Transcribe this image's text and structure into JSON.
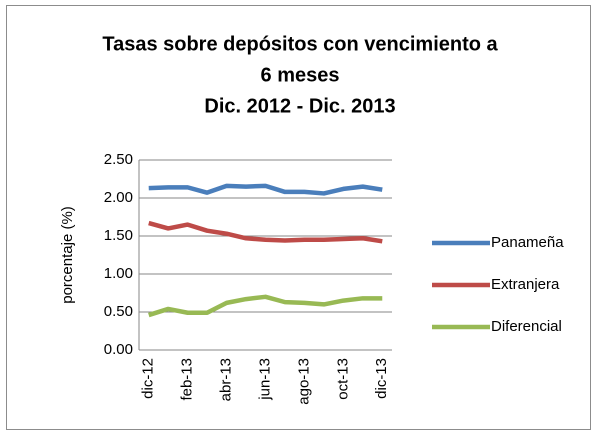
{
  "chart_data": {
    "type": "line",
    "title": [
      "Tasas sobre depósitos con vencimiento a",
      "6 meses",
      "Dic. 2012 - Dic. 2013"
    ],
    "y_label": "porcentaje (%)",
    "categories": [
      "dic-12",
      null,
      "feb-13",
      null,
      "abr-13",
      null,
      "jun-13",
      null,
      "ago-13",
      null,
      "oct-13",
      null,
      "dic-13"
    ],
    "series": [
      {
        "name": "Panameña",
        "color": "#4a7ebb",
        "values": [
          2.13,
          2.14,
          2.14,
          2.07,
          2.16,
          2.15,
          2.16,
          2.08,
          2.08,
          2.06,
          2.12,
          2.15,
          2.11
        ]
      },
      {
        "name": "Extranjera",
        "color": "#be4b48",
        "values": [
          1.67,
          1.6,
          1.65,
          1.57,
          1.53,
          1.47,
          1.45,
          1.44,
          1.45,
          1.45,
          1.46,
          1.47,
          1.43
        ]
      },
      {
        "name": "Diferencial",
        "color": "#98b954",
        "values": [
          0.46,
          0.54,
          0.49,
          0.49,
          0.62,
          0.67,
          0.7,
          0.63,
          0.62,
          0.6,
          0.65,
          0.68,
          0.68
        ]
      }
    ],
    "ylim": [
      0,
      2.5
    ],
    "yticks": [
      {
        "value": 0,
        "label": "0.00"
      },
      {
        "value": 0.5,
        "label": "0.50"
      },
      {
        "value": 1,
        "label": "1.00"
      },
      {
        "value": 1.5,
        "label": "1.50"
      },
      {
        "value": 2,
        "label": "2.00"
      },
      {
        "value": 2.5,
        "label": "2.50"
      }
    ],
    "grid": true,
    "legend": "right"
  }
}
